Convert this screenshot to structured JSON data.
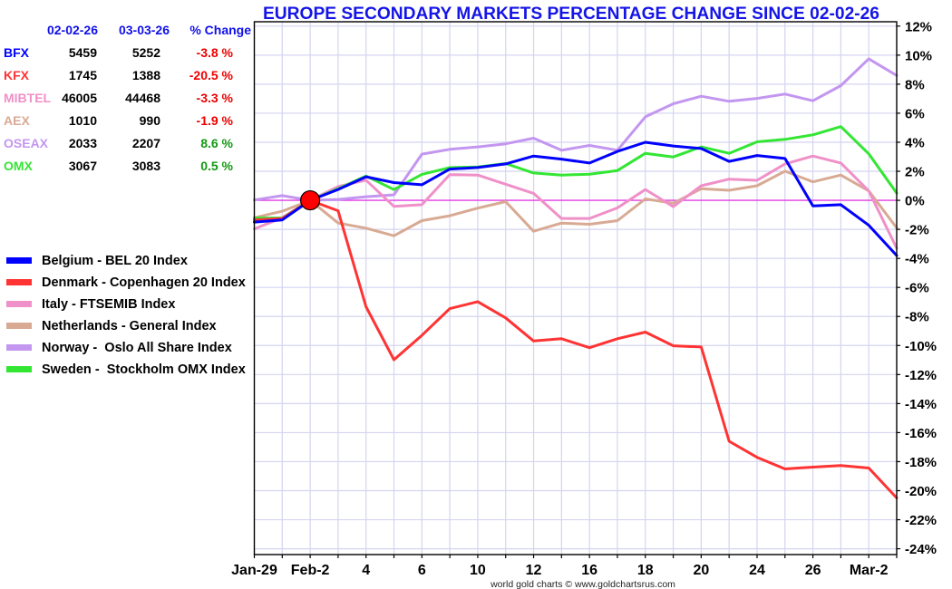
{
  "table": {
    "headers": {
      "start_date": "02-02-26",
      "end_date": "03-03-26",
      "change": "% Change"
    },
    "rows": [
      {
        "ticker": "BFX",
        "start": "5459",
        "end": "5252",
        "change": "-3.8 %",
        "ticker_color": "#0000ff",
        "change_color": "#ee0000"
      },
      {
        "ticker": "KFX",
        "start": "1745",
        "end": "1388",
        "change": "-20.5 %",
        "ticker_color": "#ff3333",
        "change_color": "#ee0000"
      },
      {
        "ticker": "MIBTEL",
        "start": "46005",
        "end": "44468",
        "change": "-3.3 %",
        "ticker_color": "#f090c8",
        "change_color": "#ee0000"
      },
      {
        "ticker": "AEX",
        "start": "1010",
        "end": "990",
        "change": "-1.9 %",
        "ticker_color": "#d8aa94",
        "change_color": "#ee0000"
      },
      {
        "ticker": "OSEAX",
        "start": "2033",
        "end": "2207",
        "change": "8.6 %",
        "ticker_color": "#c396f0",
        "change_color": "#119911"
      },
      {
        "ticker": "OMX",
        "start": "3067",
        "end": "3083",
        "change": "0.5 %",
        "ticker_color": "#33e633",
        "change_color": "#119911"
      }
    ]
  },
  "chart_data": {
    "type": "line",
    "title": "EUROPE SECONDARY MARKETS PERCENTAGE CHANGE SINCE 02-02-26",
    "xlabel": "",
    "ylabel": "",
    "x_labels": [
      "Jan-29",
      "",
      "Feb-2",
      "",
      "4",
      "",
      "6",
      "",
      "10",
      "",
      "12",
      "",
      "16",
      "",
      "18",
      "",
      "20",
      "",
      "24",
      "",
      "26",
      "",
      "Mar-2",
      ""
    ],
    "ylim": [
      -24.4,
      12.3
    ],
    "y_tick_values": [
      12,
      10,
      8,
      6,
      4,
      2,
      0,
      -2,
      -4,
      -6,
      -8,
      -10,
      -12,
      -14,
      -16,
      -18,
      -20,
      -22,
      -24
    ],
    "y_tick_labels": [
      "12%",
      "10%",
      "8%",
      "6%",
      "4%",
      "2%",
      "0%",
      "-2%",
      "-4%",
      "-6%",
      "-8%",
      "-10%",
      "-12%",
      "-14%",
      "-16%",
      "-18%",
      "-20%",
      "-22%",
      "-24%"
    ],
    "y_axis_side": "right",
    "grid": true,
    "grid_color": "#d4d4f0",
    "zero_line_color": "#e23be2",
    "legend_position": "left",
    "base_point": {
      "x_label": "Feb-2",
      "value": 0,
      "color": "#ff0000"
    },
    "series": [
      {
        "name": "Belgium - BEL 20 Index",
        "color": "#0000ff",
        "values": [
          -1.5,
          -1.35,
          0,
          0.75,
          1.62,
          1.22,
          1.07,
          2.15,
          2.26,
          2.51,
          3.05,
          2.84,
          2.57,
          3.37,
          4.0,
          3.74,
          3.57,
          2.68,
          3.09,
          2.88,
          -0.38,
          -0.3,
          -1.72,
          -3.8
        ]
      },
      {
        "name": "Denmark - Copenhagen 20 Index",
        "color": "#ff3333",
        "values": [
          -1.35,
          -1.25,
          0,
          -0.72,
          -7.33,
          -10.98,
          -9.3,
          -7.46,
          -6.98,
          -8.1,
          -9.69,
          -9.53,
          -10.15,
          -9.53,
          -9.08,
          -10.02,
          -10.1,
          -16.6,
          -17.7,
          -18.5,
          -18.38,
          -18.27,
          -18.44,
          -20.5
        ]
      },
      {
        "name": "Italy - FTSEMIB Index",
        "color": "#f090c8",
        "values": [
          -1.97,
          -1.2,
          0,
          0.95,
          1.39,
          -0.42,
          -0.3,
          1.77,
          1.74,
          1.11,
          0.48,
          -1.25,
          -1.25,
          -0.52,
          0.75,
          -0.44,
          1.0,
          1.46,
          1.38,
          2.51,
          3.05,
          2.57,
          0.65,
          -3.3
        ]
      },
      {
        "name": "Netherlands - General Index",
        "color": "#d8aa94",
        "values": [
          -1.2,
          -0.75,
          0,
          -1.56,
          -1.92,
          -2.44,
          -1.4,
          -1.06,
          -0.54,
          -0.09,
          -2.13,
          -1.57,
          -1.65,
          -1.4,
          0.1,
          -0.2,
          0.8,
          0.69,
          1.0,
          2.01,
          1.27,
          1.74,
          0.65,
          -1.9
        ]
      },
      {
        "name": "Norway -  Oslo All Share Index",
        "color": "#c396f0",
        "values": [
          0.02,
          0.32,
          0,
          0.06,
          0.25,
          0.38,
          3.18,
          3.51,
          3.68,
          3.89,
          4.28,
          3.45,
          3.78,
          3.45,
          5.75,
          6.65,
          7.17,
          6.82,
          7.02,
          7.32,
          6.86,
          7.9,
          9.75,
          8.6
        ]
      },
      {
        "name": "Sweden -  Stockholm OMX Index",
        "color": "#33e633",
        "values": [
          -1.22,
          -1.22,
          0,
          0.8,
          1.68,
          0.74,
          1.79,
          2.26,
          2.3,
          2.53,
          1.88,
          1.74,
          1.8,
          2.05,
          3.24,
          2.99,
          3.68,
          3.24,
          4.03,
          4.2,
          4.51,
          5.08,
          3.2,
          0.5
        ]
      }
    ]
  },
  "footer": "world gold charts © www.goldchartsrus.com"
}
